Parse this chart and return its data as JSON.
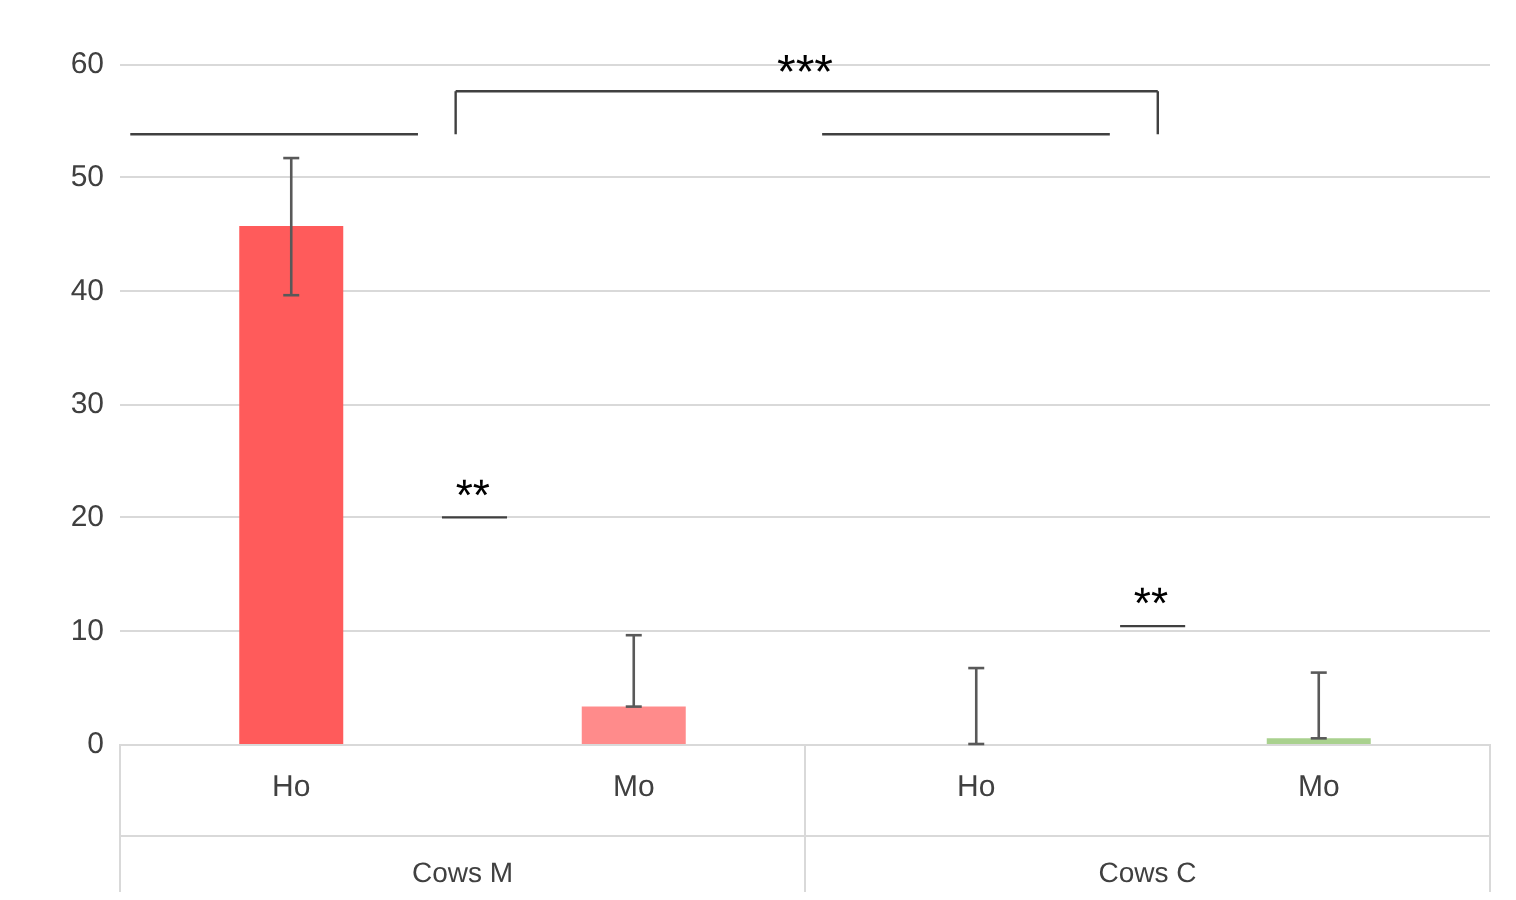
{
  "chart_data": {
    "type": "bar",
    "categories": [
      "Ho",
      "Mo",
      "Ho",
      "Mo"
    ],
    "values": [
      45.7,
      3.3,
      0,
      0.5
    ],
    "colors": [
      "#ff5b5b",
      "#ff8b8b",
      "#ff5b5b",
      "#a9d18e"
    ],
    "errors": [
      [
        39.6,
        51.7
      ],
      [
        3.3,
        9.6
      ],
      [
        0,
        6.7
      ],
      [
        0.5,
        6.3
      ]
    ],
    "ylim": [
      0,
      60
    ],
    "yticks": [
      0,
      10,
      20,
      30,
      40,
      50,
      60
    ],
    "grid": "y",
    "annotations": [
      "***",
      "**",
      "**",
      "Cows M",
      "Cows C"
    ]
  }
}
